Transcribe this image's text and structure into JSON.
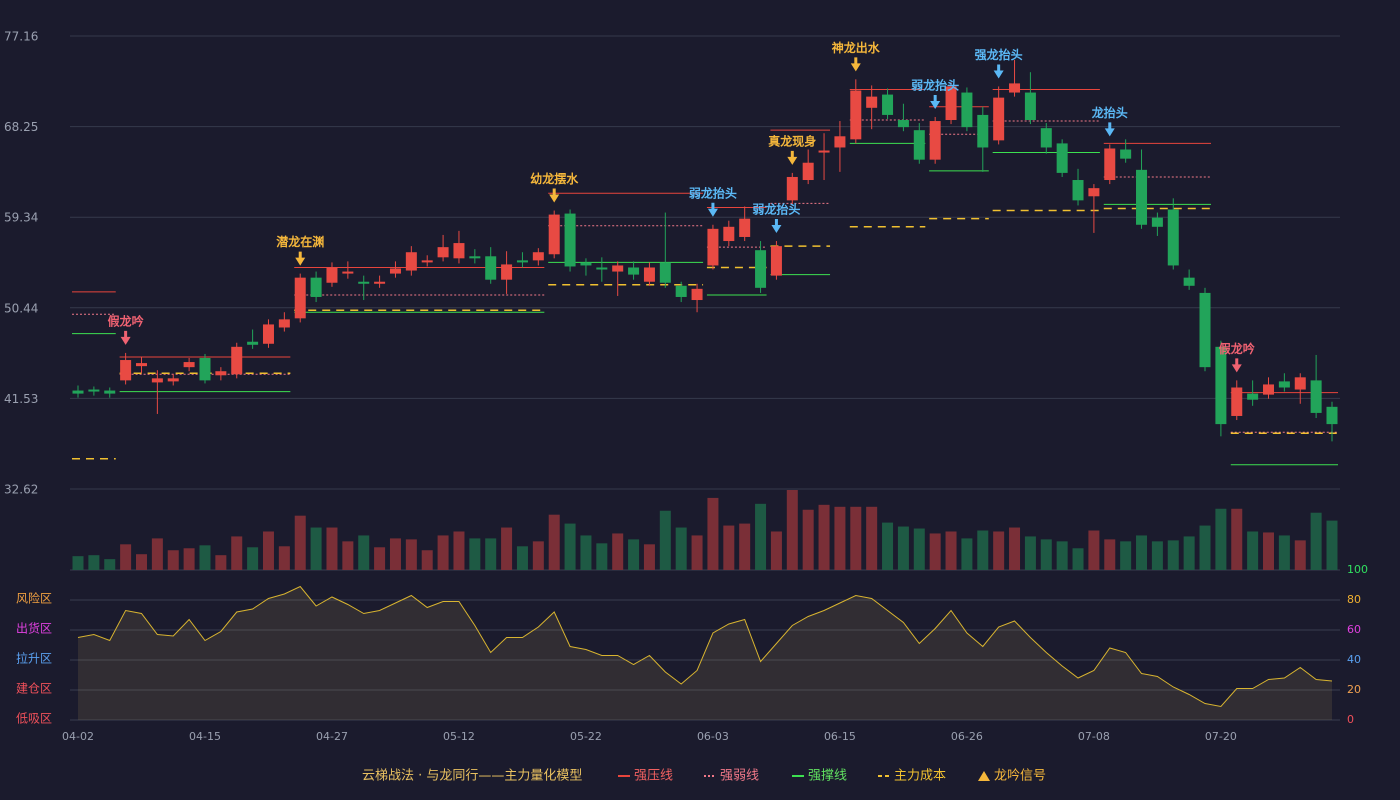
{
  "chart_data": {
    "type": "candlestick",
    "categories": [
      "04-02",
      null,
      null,
      null,
      null,
      null,
      null,
      null,
      "04-15",
      null,
      null,
      null,
      null,
      null,
      null,
      null,
      "04-27",
      null,
      null,
      null,
      null,
      null,
      null,
      null,
      "05-12",
      null,
      null,
      null,
      null,
      null,
      null,
      null,
      "05-22",
      null,
      null,
      null,
      null,
      null,
      null,
      null,
      "06-03",
      null,
      null,
      null,
      null,
      null,
      null,
      null,
      "06-15",
      null,
      null,
      null,
      null,
      null,
      null,
      null,
      "06-26",
      null,
      null,
      null,
      null,
      null,
      null,
      null,
      "07-08",
      null,
      null,
      null,
      null,
      null,
      null,
      null,
      "07-20",
      null,
      null,
      null,
      null,
      null,
      null,
      null
    ],
    "open": [
      42.3,
      42.4,
      42.3,
      43.3,
      44.7,
      43.1,
      43.2,
      44.6,
      45.5,
      43.8,
      43.9,
      47.1,
      46.9,
      48.5,
      49.4,
      53.4,
      52.9,
      53.8,
      53.0,
      52.8,
      53.8,
      54.1,
      54.9,
      55.4,
      55.3,
      55.5,
      55.5,
      53.2,
      55.1,
      55.1,
      55.7,
      59.7,
      54.9,
      54.4,
      54.0,
      54.4,
      53.0,
      54.9,
      52.6,
      51.2,
      54.6,
      57.0,
      57.4,
      56.1,
      53.6,
      61.0,
      63.0,
      65.7,
      66.2,
      67.0,
      70.1,
      71.4,
      68.9,
      67.9,
      65.0,
      68.9,
      71.6,
      69.4,
      66.9,
      71.6,
      71.6,
      68.1,
      66.6,
      63.0,
      61.4,
      63.0,
      66.0,
      64.0,
      59.3,
      60.1,
      53.4,
      51.9,
      46.6,
      39.8,
      42.0,
      41.9,
      43.2,
      42.4,
      43.3,
      40.7
    ],
    "close": [
      42.0,
      42.2,
      42.0,
      45.3,
      45.0,
      43.5,
      43.5,
      45.1,
      43.3,
      44.2,
      46.6,
      46.8,
      48.8,
      49.3,
      53.4,
      51.5,
      54.4,
      54.0,
      52.8,
      53.0,
      54.3,
      55.9,
      55.1,
      56.4,
      56.8,
      55.3,
      53.2,
      54.7,
      54.9,
      55.9,
      59.6,
      54.5,
      54.6,
      54.2,
      54.6,
      53.7,
      54.4,
      52.9,
      51.5,
      52.3,
      58.2,
      58.4,
      59.2,
      52.4,
      56.5,
      63.3,
      64.7,
      65.9,
      67.3,
      71.8,
      71.2,
      69.4,
      68.2,
      65.0,
      68.8,
      72.2,
      68.2,
      66.2,
      71.1,
      72.5,
      68.9,
      66.2,
      63.7,
      61.0,
      62.2,
      66.1,
      65.1,
      58.6,
      58.4,
      54.6,
      52.6,
      44.6,
      39.0,
      42.6,
      41.4,
      42.9,
      42.6,
      43.6,
      40.1,
      39.0
    ],
    "high": [
      42.8,
      42.7,
      42.6,
      46.0,
      45.6,
      44.3,
      43.9,
      45.5,
      45.9,
      44.6,
      47.0,
      48.3,
      49.3,
      50.0,
      53.8,
      54.0,
      54.9,
      55.0,
      53.6,
      53.6,
      55.0,
      56.5,
      55.6,
      57.6,
      58.0,
      56.2,
      56.4,
      56.0,
      55.9,
      56.3,
      60.0,
      60.1,
      55.3,
      55.4,
      55.0,
      55.0,
      54.9,
      59.8,
      53.0,
      52.8,
      58.6,
      59.0,
      60.4,
      57.0,
      57.0,
      63.7,
      66.0,
      67.6,
      68.8,
      72.9,
      72.3,
      72.0,
      70.5,
      68.6,
      69.2,
      72.6,
      72.1,
      70.2,
      72.2,
      74.8,
      73.6,
      68.6,
      67.0,
      64.1,
      62.6,
      66.5,
      67.0,
      66.0,
      59.8,
      61.2,
      54.2,
      52.4,
      47.2,
      43.3,
      43.3,
      43.6,
      44.0,
      44.0,
      45.8,
      41.2
    ],
    "low": [
      41.6,
      41.8,
      41.6,
      42.9,
      44.0,
      40.0,
      42.8,
      44.2,
      43.0,
      43.3,
      43.5,
      46.4,
      46.5,
      48.1,
      49.0,
      51.0,
      52.5,
      53.3,
      51.2,
      52.4,
      53.4,
      53.6,
      54.5,
      55.0,
      54.8,
      54.8,
      52.8,
      51.8,
      54.4,
      54.6,
      55.3,
      54.0,
      53.6,
      53.0,
      51.6,
      53.2,
      52.6,
      52.4,
      51.0,
      50.0,
      54.2,
      56.5,
      57.0,
      51.9,
      53.2,
      60.6,
      62.6,
      63.0,
      63.8,
      66.6,
      68.0,
      69.0,
      67.8,
      64.6,
      64.6,
      68.5,
      67.8,
      63.8,
      66.5,
      71.2,
      68.5,
      65.6,
      63.3,
      60.5,
      57.8,
      62.6,
      64.7,
      58.2,
      57.5,
      54.2,
      52.2,
      44.2,
      37.8,
      39.4,
      40.8,
      41.5,
      42.2,
      41.0,
      39.6,
      37.3
    ],
    "volume": [
      14,
      15,
      11,
      26,
      16,
      32,
      20,
      22,
      25,
      15,
      34,
      23,
      39,
      24,
      55,
      43,
      43,
      29,
      35,
      23,
      32,
      31,
      20,
      35,
      39,
      32,
      32,
      43,
      24,
      29,
      56,
      47,
      35,
      27,
      37,
      31,
      26,
      60,
      43,
      35,
      73,
      45,
      47,
      67,
      39,
      81,
      61,
      66,
      64,
      64,
      64,
      48,
      44,
      42,
      37,
      39,
      32,
      40,
      39,
      43,
      34,
      31,
      29,
      22,
      40,
      31,
      29,
      35,
      29,
      30,
      34,
      45,
      62,
      62,
      39,
      38,
      35,
      30,
      58,
      50
    ],
    "oscillator": [
      55,
      57,
      53,
      73,
      71,
      57,
      56,
      67,
      53,
      59,
      72,
      74,
      81,
      84,
      89,
      76,
      82,
      77,
      71,
      73,
      78,
      83,
      75,
      79,
      79,
      63,
      45,
      55,
      55,
      62,
      72,
      49,
      47,
      43,
      43,
      37,
      43,
      32,
      24,
      33,
      58,
      64,
      67,
      39,
      51,
      63,
      69,
      73,
      78,
      83,
      81,
      73,
      65,
      51,
      61,
      73,
      58,
      49,
      62,
      66,
      55,
      45,
      36,
      28,
      33,
      48,
      45,
      31,
      29,
      22,
      17,
      11,
      9,
      21,
      21,
      27,
      28,
      35,
      27,
      26
    ],
    "ylim": [
      32.62,
      77.16
    ],
    "yticks": [
      32.62,
      41.53,
      50.44,
      59.34,
      68.25,
      77.16
    ],
    "osc_ylim": [
      0,
      100
    ],
    "osc_yticks": [
      {
        "value": 0,
        "color": "#f0505a"
      },
      {
        "value": 20,
        "color": "#f0a050"
      },
      {
        "value": 40,
        "color": "#5aa0f0"
      },
      {
        "value": 60,
        "color": "#e040e0"
      },
      {
        "value": 80,
        "color": "#f0b030"
      },
      {
        "value": 100,
        "color": "#30e060"
      }
    ],
    "zones": [
      {
        "label": "风险区",
        "value": 80,
        "color": "#f0a040"
      },
      {
        "label": "出货区",
        "value": 60,
        "color": "#e040e0"
      },
      {
        "label": "拉升区",
        "value": 40,
        "color": "#5aa0f0"
      },
      {
        "label": "建仓区",
        "value": 20,
        "color": "#f0505a"
      },
      {
        "label": "低吸区",
        "value": 0,
        "color": "#f0505a"
      }
    ],
    "colors": {
      "up": "#e84a43",
      "down": "#22a45a",
      "up_volume": "#7a2f37",
      "down_volume": "#1e5a44",
      "pressure": "#e8453c",
      "weak": "#f07888",
      "support": "#3ce050",
      "cost": "#f0c030",
      "oscillator": "#d8b430"
    },
    "signals": [
      {
        "index": 3,
        "label": "假龙吟",
        "color": "#f06272"
      },
      {
        "index": 14,
        "label": "潜龙在渊",
        "color": "#f5b73b"
      },
      {
        "index": 30,
        "label": "幼龙摆水",
        "color": "#f5b73b"
      },
      {
        "index": 40,
        "label": "弱龙抬头",
        "color": "#5bb8f5"
      },
      {
        "index": 44,
        "label": "弱龙抬头",
        "color": "#5bb8f5"
      },
      {
        "index": 45,
        "label": "真龙现身",
        "color": "#f5b73b"
      },
      {
        "index": 49,
        "label": "神龙出水",
        "color": "#f5b73b"
      },
      {
        "index": 54,
        "label": "弱龙抬头",
        "color": "#5bb8f5"
      },
      {
        "index": 58,
        "label": "强龙抬头",
        "color": "#5bb8f5"
      },
      {
        "index": 65,
        "label": "龙抬头",
        "color": "#5bb8f5"
      },
      {
        "index": 73,
        "label": "假龙吟",
        "color": "#f06272"
      }
    ],
    "levels": [
      {
        "start": 0,
        "end": 2,
        "pressure": 52.0,
        "weak": 49.8,
        "support": 47.9,
        "cost": 35.6
      },
      {
        "start": 3,
        "end": 13,
        "pressure": 45.6,
        "weak": 43.9,
        "support": 42.2,
        "cost": 44.0
      },
      {
        "start": 14,
        "end": 29,
        "pressure": 54.4,
        "weak": 51.7,
        "support": 50.0,
        "cost": 50.2
      },
      {
        "start": 30,
        "end": 39,
        "pressure": 61.7,
        "weak": 58.5,
        "support": 54.9,
        "cost": 52.7
      },
      {
        "start": 40,
        "end": 43,
        "pressure": 60.3,
        "weak": 56.4,
        "support": 51.7,
        "cost": 54.4
      },
      {
        "start": 44,
        "end": 47,
        "pressure": 67.9,
        "weak": 60.7,
        "support": 53.7,
        "cost": 56.5
      },
      {
        "start": 49,
        "end": 53,
        "pressure": 71.9,
        "weak": 68.9,
        "support": 66.6,
        "cost": 58.4
      },
      {
        "start": 54,
        "end": 57,
        "pressure": 70.2,
        "weak": 67.5,
        "support": 63.9,
        "cost": 59.2
      },
      {
        "start": 58,
        "end": 64,
        "pressure": 71.9,
        "weak": 68.8,
        "support": 65.7,
        "cost": 60.0
      },
      {
        "start": 65,
        "end": 71,
        "pressure": 66.6,
        "weak": 63.3,
        "support": 60.6,
        "cost": 60.2
      },
      {
        "start": 73,
        "end": 79,
        "pressure": 42.1,
        "weak": 38.2,
        "support": 35.0,
        "cost": 38.1
      }
    ],
    "legend": {
      "title": "云梯战法 · 与龙同行——主力量化模型",
      "items": [
        "强压线",
        "强弱线",
        "强撑线",
        "主力成本",
        "龙吟信号"
      ]
    }
  }
}
